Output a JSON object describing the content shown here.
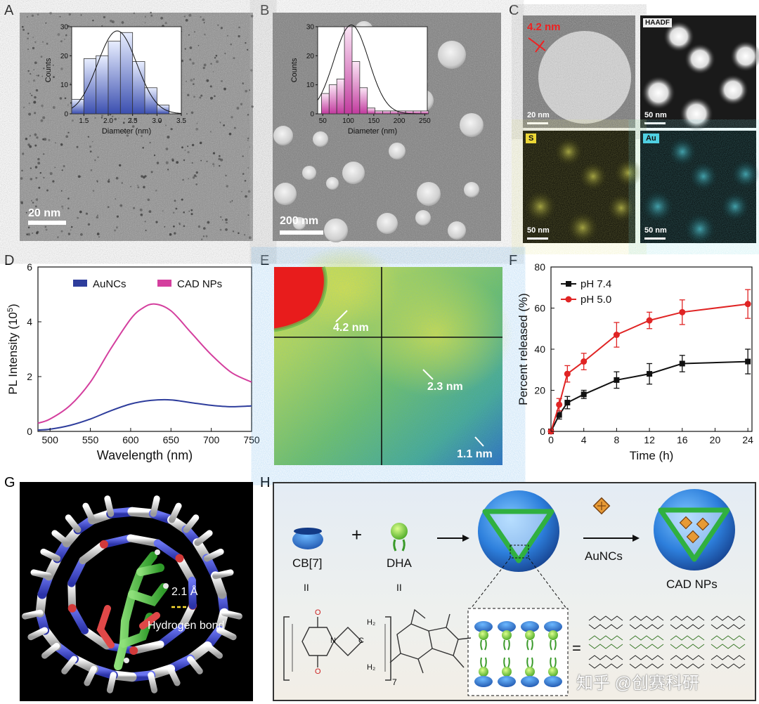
{
  "labels": {
    "A": "A",
    "B": "B",
    "C": "C",
    "D": "D",
    "E": "E",
    "F": "F",
    "G": "G",
    "H": "H"
  },
  "panel_a": {
    "scale_bar": "20 nm"
  },
  "panel_b": {
    "scale_bar": "200 nm"
  },
  "panel_c": {
    "size_label": "4.2 nm",
    "tiles": [
      {
        "tag": "",
        "scale": "20 nm"
      },
      {
        "tag": "HAADF",
        "scale": "50 nm"
      },
      {
        "tag": "S",
        "scale": "50 nm"
      },
      {
        "tag": "Au",
        "scale": "50 nm"
      }
    ]
  },
  "panel_e": {
    "labels": [
      "4.2 nm",
      "2.3 nm",
      "1.1 nm"
    ]
  },
  "panel_g": {
    "distance": "2.1 Å",
    "bond_label": "Hydrogen bond"
  },
  "panel_h": {
    "cb7": "CB[7]",
    "plus": "+",
    "dha": "DHA",
    "ii1": "II",
    "ii2": "II",
    "aunc_label": "AuNCs",
    "product": "CAD NPs",
    "equals": "=",
    "subscript": "7",
    "struct_ch2": "H₂",
    "struct_c": "C",
    "struct_n": "N",
    "struct_o": "O",
    "watermark": "知乎 @创赛科研"
  },
  "chart_data": [
    {
      "id": "A-inset",
      "type": "bar",
      "xlabel": "Diameter (nm)",
      "ylabel": "Counts",
      "xlim": [
        1.25,
        3.5
      ],
      "ylim": [
        0,
        30
      ],
      "xticks": [
        "1.5",
        "2.0",
        "2.5",
        "3.0",
        "3.5"
      ],
      "yticks": [
        "0",
        "10",
        "20",
        "30"
      ],
      "bar_centers": [
        1.375,
        1.625,
        1.875,
        2.125,
        2.375,
        2.625,
        2.875,
        3.125,
        3.375
      ],
      "values": [
        5,
        19,
        20,
        25,
        28,
        18,
        9,
        3,
        0
      ],
      "fit": "gaussian"
    },
    {
      "id": "B-inset",
      "type": "bar",
      "xlabel": "Diameter (nm)",
      "ylabel": "Counts",
      "xlim": [
        40,
        255
      ],
      "ylim": [
        0,
        30
      ],
      "xticks": [
        "50",
        "100",
        "150",
        "200",
        "250"
      ],
      "yticks": [
        "0",
        "10",
        "20",
        "30"
      ],
      "bar_centers": [
        55,
        70,
        85,
        100,
        115,
        130,
        145,
        160,
        175,
        190,
        205,
        220,
        235,
        250
      ],
      "values": [
        7,
        10,
        12,
        30,
        18,
        9,
        2,
        1,
        1,
        1,
        1,
        1,
        1,
        1
      ],
      "fit": "gaussian"
    },
    {
      "id": "D",
      "type": "line",
      "xlabel": "Wavelength (nm)",
      "ylabel": "PL Intensity (10",
      "ylabel_sup": "5",
      "ylabel_end": ")",
      "xlim": [
        485,
        750
      ],
      "ylim": [
        0,
        6
      ],
      "xticks": [
        "500",
        "550",
        "600",
        "650",
        "700",
        "750"
      ],
      "yticks": [
        "0",
        "2",
        "4",
        "6"
      ],
      "legend_position": "top",
      "series": [
        {
          "name": "AuNCs",
          "color": "#2e3d9c",
          "x": [
            485,
            500,
            525,
            550,
            575,
            600,
            625,
            650,
            675,
            700,
            725,
            750
          ],
          "y": [
            0.05,
            0.08,
            0.22,
            0.45,
            0.75,
            1.0,
            1.13,
            1.15,
            1.05,
            0.95,
            0.9,
            0.93
          ]
        },
        {
          "name": "CAD NPs",
          "color": "#d43f9e",
          "x": [
            485,
            500,
            525,
            550,
            575,
            600,
            615,
            630,
            650,
            675,
            700,
            725,
            750
          ],
          "y": [
            0.3,
            0.45,
            0.95,
            1.8,
            3.0,
            4.1,
            4.5,
            4.65,
            4.4,
            3.6,
            2.8,
            2.15,
            1.8
          ]
        }
      ]
    },
    {
      "id": "F",
      "type": "line",
      "xlabel": "Time (h)",
      "ylabel": "Percent released (%)",
      "xlim": [
        0,
        24.5
      ],
      "ylim": [
        0,
        80
      ],
      "xticks": [
        "0",
        "4",
        "8",
        "12",
        "16",
        "20",
        "24"
      ],
      "yticks": [
        "0",
        "20",
        "40",
        "60",
        "80"
      ],
      "legend_position": "top-left",
      "series": [
        {
          "name": "pH 7.4",
          "color": "#111111",
          "marker": "square",
          "x": [
            0,
            1,
            2,
            4,
            8,
            12,
            16,
            24
          ],
          "y": [
            0,
            8,
            14,
            18,
            25,
            28,
            33,
            34
          ],
          "err": [
            0,
            2,
            3,
            2,
            4,
            5,
            4,
            6
          ]
        },
        {
          "name": "pH 5.0",
          "color": "#e02424",
          "marker": "circle",
          "x": [
            0,
            1,
            2,
            4,
            8,
            12,
            16,
            24
          ],
          "y": [
            0,
            13,
            28,
            34,
            47,
            54,
            58,
            62
          ],
          "err": [
            0,
            3,
            4,
            4,
            6,
            4,
            6,
            7
          ]
        }
      ]
    }
  ]
}
